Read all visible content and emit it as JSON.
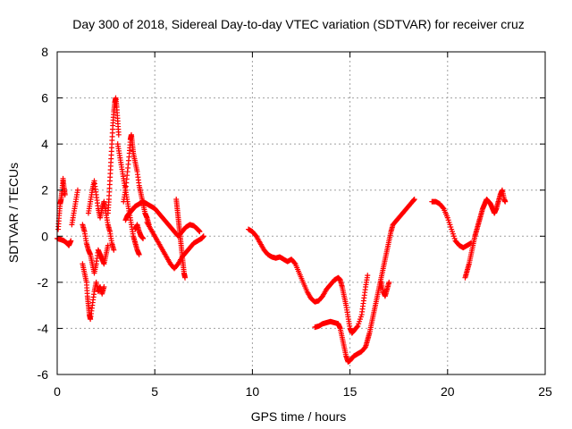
{
  "chart_data": {
    "type": "scatter",
    "title": "Day 300 of 2018, Sidereal Day-to-day VTEC variation (SDTVAR) for receiver cruz",
    "xlabel": "GPS time / hours",
    "ylabel": "SDTVAR / TECUs",
    "xlim": [
      0,
      25
    ],
    "ylim": [
      -6,
      8
    ],
    "xticks": [
      0,
      5,
      10,
      15,
      20,
      25
    ],
    "yticks": [
      -6,
      -4,
      -2,
      0,
      2,
      4,
      6,
      8
    ],
    "grid": true,
    "marker": "+",
    "series": [
      {
        "name": "SDTVAR",
        "color": "#ff0000",
        "segments": [
          [
            [
              0.0,
              -0.1
            ],
            [
              0.2,
              -0.15
            ],
            [
              0.35,
              -0.2
            ],
            [
              0.5,
              -0.3
            ],
            [
              0.6,
              -0.4
            ],
            [
              0.7,
              -0.2
            ]
          ],
          [
            [
              0.05,
              0.3
            ],
            [
              0.1,
              0.9
            ],
            [
              0.15,
              1.4
            ],
            [
              0.2,
              1.6
            ],
            [
              0.25,
              2.0
            ],
            [
              0.3,
              2.5
            ],
            [
              0.35,
              2.1
            ],
            [
              0.4,
              1.8
            ]
          ],
          [
            [
              0.75,
              0.5
            ],
            [
              0.85,
              1.0
            ],
            [
              0.95,
              1.5
            ],
            [
              1.05,
              2.0
            ]
          ],
          [
            [
              1.3,
              -1.2
            ],
            [
              1.4,
              -1.6
            ],
            [
              1.5,
              -2.0
            ],
            [
              1.55,
              -2.6
            ],
            [
              1.6,
              -3.0
            ],
            [
              1.65,
              -3.4
            ],
            [
              1.7,
              -3.6
            ],
            [
              1.8,
              -3.0
            ],
            [
              1.9,
              -2.4
            ],
            [
              2.0,
              -2.0
            ],
            [
              2.1,
              -2.4
            ],
            [
              2.2,
              -2.2
            ],
            [
              2.3,
              -2.5
            ],
            [
              2.4,
              -2.2
            ]
          ],
          [
            [
              1.3,
              0.5
            ],
            [
              1.4,
              0.2
            ],
            [
              1.5,
              -0.3
            ],
            [
              1.6,
              -0.6
            ],
            [
              1.7,
              -0.8
            ],
            [
              1.8,
              -1.2
            ],
            [
              1.9,
              -1.6
            ],
            [
              2.0,
              -1.2
            ],
            [
              2.1,
              -0.6
            ],
            [
              2.2,
              -0.8
            ],
            [
              2.3,
              -1.0
            ],
            [
              2.4,
              -1.2
            ],
            [
              2.5,
              -0.8
            ],
            [
              2.6,
              -0.4
            ]
          ],
          [
            [
              1.6,
              1.0
            ],
            [
              1.7,
              1.5
            ],
            [
              1.8,
              2.0
            ],
            [
              1.9,
              2.4
            ],
            [
              2.0,
              1.8
            ],
            [
              2.1,
              1.2
            ],
            [
              2.2,
              0.8
            ],
            [
              2.3,
              1.2
            ],
            [
              2.4,
              1.5
            ],
            [
              2.5,
              1.0
            ],
            [
              2.6,
              0.5
            ],
            [
              2.7,
              0.2
            ],
            [
              2.8,
              -0.3
            ],
            [
              2.9,
              -0.6
            ]
          ],
          [
            [
              2.6,
              1.0
            ],
            [
              2.65,
              1.6
            ],
            [
              2.7,
              2.4
            ],
            [
              2.75,
              3.2
            ],
            [
              2.8,
              4.0
            ],
            [
              2.85,
              4.8
            ],
            [
              2.9,
              5.4
            ],
            [
              2.95,
              5.8
            ],
            [
              3.0,
              6.0
            ],
            [
              3.05,
              5.6
            ],
            [
              3.1,
              5.0
            ],
            [
              3.15,
              4.4
            ]
          ],
          [
            [
              3.1,
              4.0
            ],
            [
              3.2,
              3.5
            ],
            [
              3.3,
              3.0
            ],
            [
              3.4,
              2.5
            ],
            [
              3.5,
              2.0
            ],
            [
              3.6,
              1.5
            ],
            [
              3.7,
              1.0
            ],
            [
              3.8,
              0.5
            ],
            [
              3.9,
              0.0
            ],
            [
              4.0,
              -0.3
            ],
            [
              4.1,
              -0.6
            ],
            [
              4.2,
              -0.8
            ]
          ],
          [
            [
              3.4,
              1.5
            ],
            [
              3.5,
              2.0
            ],
            [
              3.6,
              2.8
            ],
            [
              3.7,
              3.6
            ],
            [
              3.75,
              4.2
            ],
            [
              3.8,
              4.4
            ],
            [
              3.85,
              4.0
            ],
            [
              3.9,
              3.6
            ],
            [
              4.0,
              3.2
            ],
            [
              4.1,
              2.8
            ],
            [
              4.2,
              2.2
            ],
            [
              4.3,
              1.8
            ],
            [
              4.4,
              1.4
            ],
            [
              4.5,
              1.0
            ],
            [
              4.6,
              0.8
            ],
            [
              4.7,
              0.5
            ]
          ],
          [
            [
              4.0,
              0.3
            ],
            [
              4.1,
              0.5
            ],
            [
              4.2,
              0.2
            ],
            [
              4.3,
              0.0
            ],
            [
              4.4,
              -0.1
            ]
          ],
          [
            [
              3.5,
              0.7
            ],
            [
              3.6,
              0.9
            ],
            [
              3.7,
              1.0
            ],
            [
              3.8,
              1.1
            ],
            [
              3.9,
              1.2
            ],
            [
              4.0,
              1.3
            ],
            [
              4.2,
              1.4
            ],
            [
              4.4,
              1.5
            ],
            [
              4.6,
              1.4
            ],
            [
              4.8,
              1.3
            ],
            [
              5.0,
              1.2
            ],
            [
              5.2,
              1.0
            ],
            [
              5.4,
              0.8
            ],
            [
              5.6,
              0.6
            ],
            [
              5.8,
              0.4
            ],
            [
              6.0,
              0.2
            ],
            [
              6.2,
              0.0
            ],
            [
              6.4,
              0.2
            ],
            [
              6.6,
              0.4
            ],
            [
              6.8,
              0.5
            ],
            [
              7.0,
              0.45
            ],
            [
              7.2,
              0.3
            ],
            [
              7.3,
              0.2
            ]
          ],
          [
            [
              4.6,
              0.6
            ],
            [
              4.8,
              0.3
            ],
            [
              5.0,
              0.0
            ],
            [
              5.2,
              -0.3
            ],
            [
              5.4,
              -0.6
            ],
            [
              5.6,
              -0.9
            ],
            [
              5.8,
              -1.2
            ],
            [
              6.0,
              -1.4
            ],
            [
              6.2,
              -1.2
            ],
            [
              6.4,
              -0.9
            ],
            [
              6.6,
              -0.7
            ],
            [
              6.8,
              -0.5
            ],
            [
              7.0,
              -0.3
            ],
            [
              7.2,
              -0.2
            ],
            [
              7.4,
              -0.1
            ],
            [
              7.5,
              0.0
            ]
          ],
          [
            [
              6.1,
              1.6
            ],
            [
              6.15,
              1.2
            ],
            [
              6.2,
              0.8
            ],
            [
              6.25,
              0.4
            ],
            [
              6.3,
              0.0
            ],
            [
              6.35,
              -0.4
            ],
            [
              6.4,
              -0.8
            ],
            [
              6.45,
              -1.2
            ],
            [
              6.5,
              -1.6
            ],
            [
              6.55,
              -1.8
            ]
          ],
          [
            [
              9.8,
              0.3
            ],
            [
              10.0,
              0.2
            ],
            [
              10.2,
              0.0
            ],
            [
              10.4,
              -0.3
            ],
            [
              10.6,
              -0.6
            ],
            [
              10.8,
              -0.8
            ],
            [
              11.0,
              -0.9
            ],
            [
              11.2,
              -0.95
            ],
            [
              11.4,
              -0.9
            ],
            [
              11.6,
              -1.0
            ],
            [
              11.8,
              -1.1
            ],
            [
              12.0,
              -1.0
            ],
            [
              12.2,
              -1.2
            ],
            [
              12.4,
              -1.6
            ],
            [
              12.6,
              -2.0
            ],
            [
              12.8,
              -2.4
            ],
            [
              13.0,
              -2.7
            ],
            [
              13.2,
              -2.85
            ],
            [
              13.4,
              -2.8
            ],
            [
              13.6,
              -2.6
            ],
            [
              13.8,
              -2.3
            ],
            [
              14.0,
              -2.1
            ],
            [
              14.2,
              -1.9
            ],
            [
              14.4,
              -1.8
            ],
            [
              14.5,
              -1.9
            ],
            [
              14.6,
              -2.2
            ],
            [
              14.7,
              -2.6
            ],
            [
              14.8,
              -3.0
            ],
            [
              14.9,
              -3.5
            ],
            [
              15.0,
              -4.0
            ],
            [
              15.1,
              -4.2
            ],
            [
              15.2,
              -4.1
            ],
            [
              15.4,
              -3.9
            ],
            [
              15.6,
              -3.4
            ],
            [
              15.7,
              -2.8
            ],
            [
              15.8,
              -2.2
            ],
            [
              15.9,
              -1.7
            ]
          ],
          [
            [
              13.2,
              -3.95
            ],
            [
              13.4,
              -3.9
            ],
            [
              13.6,
              -3.8
            ],
            [
              13.8,
              -3.75
            ],
            [
              14.0,
              -3.7
            ],
            [
              14.2,
              -3.75
            ],
            [
              14.4,
              -3.8
            ],
            [
              14.5,
              -4.0
            ],
            [
              14.6,
              -4.4
            ],
            [
              14.7,
              -4.8
            ],
            [
              14.8,
              -5.2
            ],
            [
              14.9,
              -5.45
            ],
            [
              15.0,
              -5.4
            ],
            [
              15.2,
              -5.2
            ],
            [
              15.4,
              -5.1
            ],
            [
              15.6,
              -5.0
            ],
            [
              15.8,
              -4.8
            ],
            [
              15.9,
              -4.5
            ],
            [
              16.0,
              -4.2
            ],
            [
              16.1,
              -3.8
            ],
            [
              16.2,
              -3.4
            ],
            [
              16.3,
              -3.0
            ],
            [
              16.4,
              -2.6
            ],
            [
              16.5,
              -2.2
            ],
            [
              16.6,
              -1.8
            ],
            [
              16.7,
              -1.4
            ],
            [
              16.8,
              -1.0
            ],
            [
              16.9,
              -0.6
            ],
            [
              17.0,
              -0.2
            ],
            [
              17.1,
              0.2
            ],
            [
              17.2,
              0.5
            ],
            [
              17.4,
              0.7
            ],
            [
              17.6,
              0.9
            ],
            [
              17.8,
              1.1
            ],
            [
              18.0,
              1.3
            ],
            [
              18.2,
              1.5
            ],
            [
              18.3,
              1.6
            ]
          ],
          [
            [
              16.6,
              -2.0
            ],
            [
              16.7,
              -2.4
            ],
            [
              16.8,
              -2.6
            ],
            [
              16.9,
              -2.3
            ],
            [
              17.0,
              -2.0
            ]
          ],
          [
            [
              19.2,
              1.5
            ],
            [
              19.4,
              1.5
            ],
            [
              19.6,
              1.4
            ],
            [
              19.8,
              1.2
            ],
            [
              20.0,
              0.8
            ],
            [
              20.2,
              0.3
            ],
            [
              20.4,
              -0.2
            ],
            [
              20.6,
              -0.4
            ],
            [
              20.8,
              -0.5
            ],
            [
              21.0,
              -0.4
            ],
            [
              21.2,
              -0.3
            ]
          ],
          [
            [
              20.9,
              -1.8
            ],
            [
              21.0,
              -1.5
            ],
            [
              21.1,
              -1.2
            ],
            [
              21.2,
              -0.8
            ],
            [
              21.3,
              -0.4
            ],
            [
              21.4,
              0.0
            ],
            [
              21.5,
              0.3
            ],
            [
              21.6,
              0.6
            ],
            [
              21.7,
              0.9
            ],
            [
              21.8,
              1.2
            ],
            [
              21.9,
              1.4
            ],
            [
              22.0,
              1.6
            ],
            [
              22.1,
              1.5
            ],
            [
              22.2,
              1.4
            ],
            [
              22.3,
              1.2
            ],
            [
              22.4,
              1.0
            ],
            [
              22.5,
              1.2
            ],
            [
              22.6,
              1.5
            ],
            [
              22.7,
              1.8
            ],
            [
              22.8,
              2.0
            ],
            [
              22.9,
              1.6
            ],
            [
              22.95,
              1.5
            ]
          ]
        ]
      }
    ]
  }
}
